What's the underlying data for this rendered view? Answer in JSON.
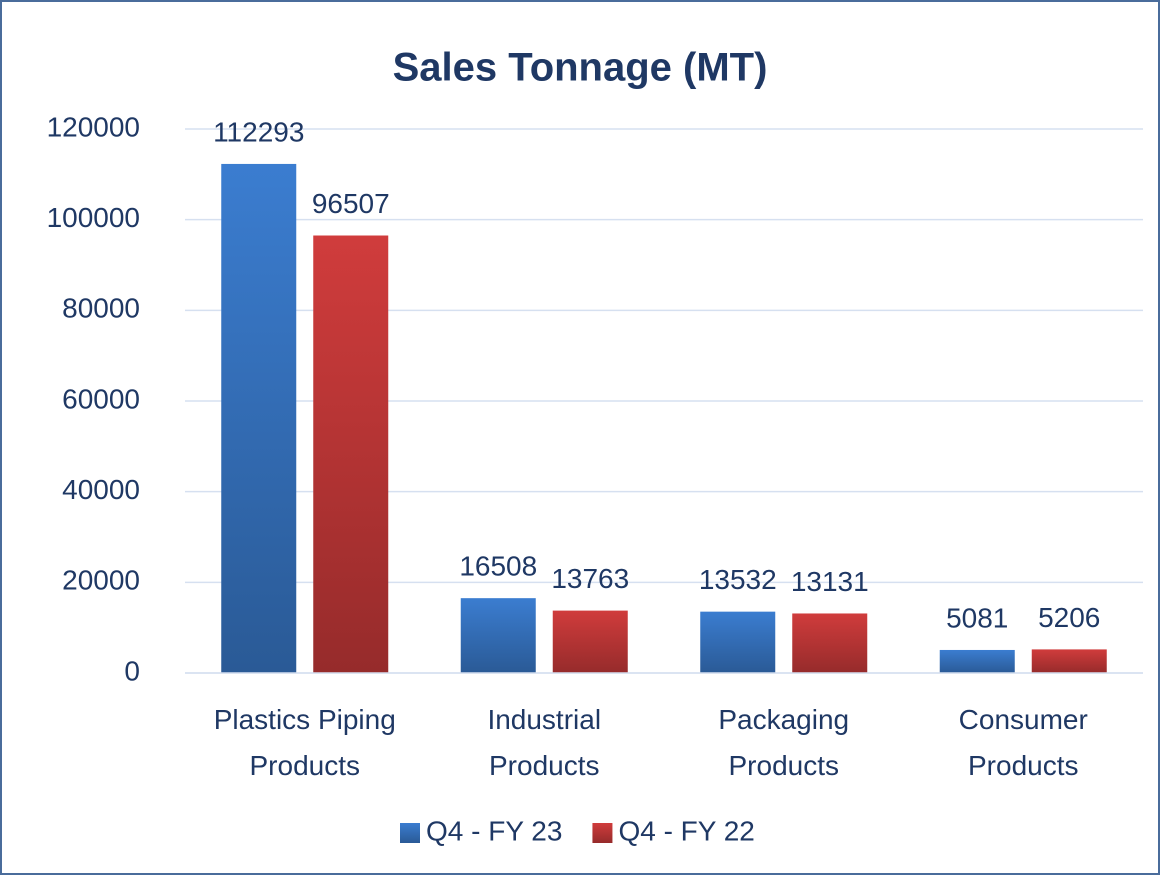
{
  "chart_data": {
    "type": "bar",
    "title": "Sales Tonnage (MT)",
    "categories": [
      "Plastics Piping Products",
      "Industrial Products",
      "Packaging Products",
      "Consumer Products"
    ],
    "series": [
      {
        "name": "Q4 - FY 23",
        "color": "#3b7dd0",
        "values": [
          112293,
          16508,
          13532,
          5081
        ]
      },
      {
        "name": "Q4 - FY 22",
        "color": "#d03c3c",
        "values": [
          96507,
          13763,
          13131,
          5206
        ]
      }
    ],
    "ylim": [
      0,
      120000
    ],
    "yticks": [
      0,
      20000,
      40000,
      60000,
      80000,
      100000,
      120000
    ],
    "grid": true,
    "legend": "bottom"
  }
}
